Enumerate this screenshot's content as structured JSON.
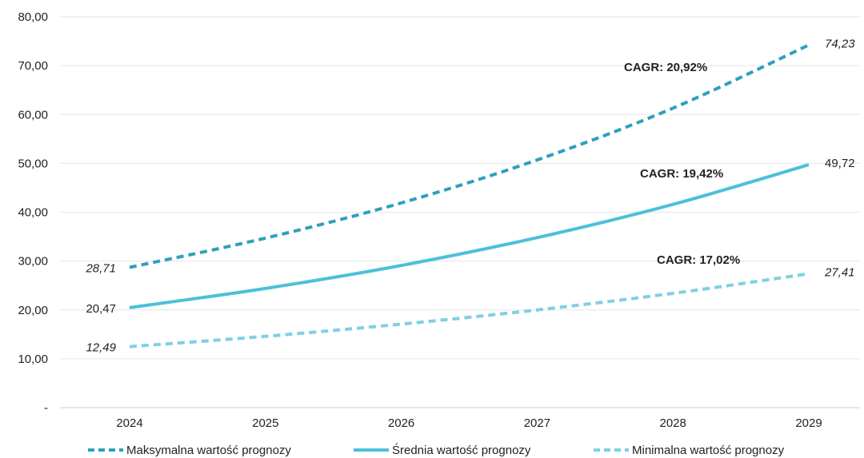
{
  "chart_data": {
    "type": "line",
    "x": [
      "2024",
      "2025",
      "2026",
      "2027",
      "2028",
      "2029"
    ],
    "y_ticks": [
      "-",
      "10,00",
      "20,00",
      "30,00",
      "40,00",
      "50,00",
      "60,00",
      "70,00",
      "80,00"
    ],
    "ylim": [
      0,
      80
    ],
    "grid": true,
    "legend_position": "bottom",
    "series": [
      {
        "name": "Maksymalna wartość prognozy",
        "values": [
          28.71,
          34.7,
          41.9,
          50.7,
          61.3,
          74.23
        ],
        "color": "#2f9fbe",
        "style": "dashed",
        "start_label": "28,71",
        "end_label": "74,23",
        "cagr": "CAGR: 20,92%"
      },
      {
        "name": "Średnia wartość prognozy",
        "values": [
          20.47,
          24.4,
          29.1,
          34.8,
          41.6,
          49.72
        ],
        "color": "#4cc0d8",
        "style": "solid",
        "start_label": "20,47",
        "end_label": "49,72",
        "cagr": "CAGR: 19,42%"
      },
      {
        "name": "Minimalna wartość prognozy",
        "values": [
          12.49,
          14.6,
          17.1,
          20.0,
          23.4,
          27.41
        ],
        "color": "#7fd0e3",
        "style": "dashed",
        "start_label": "12,49",
        "end_label": "27,41",
        "cagr": "CAGR: 17,02%"
      }
    ]
  }
}
